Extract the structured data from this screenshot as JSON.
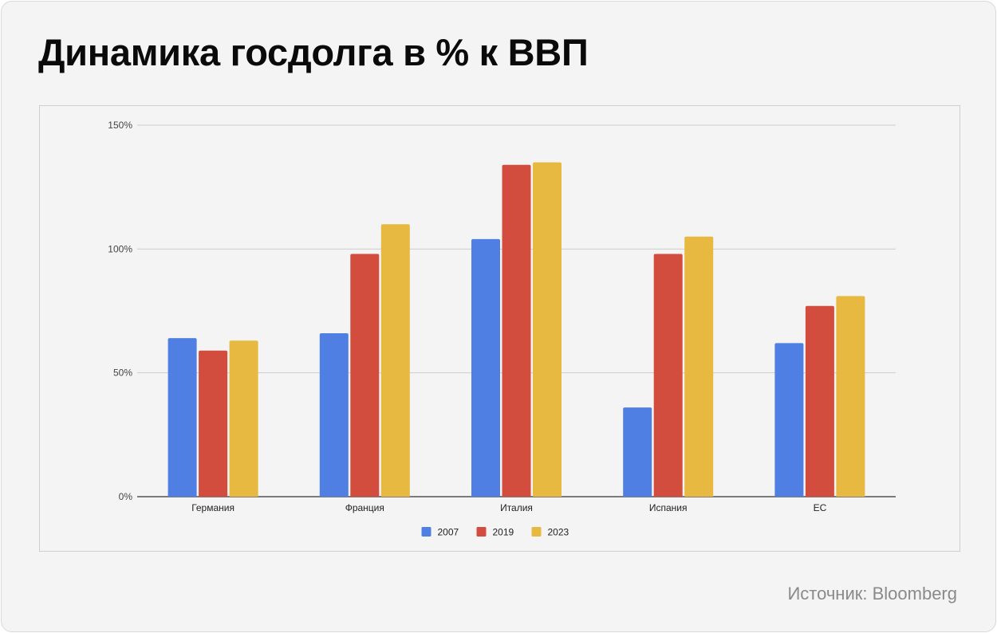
{
  "title": "Динамика госдолга в % к ВВП",
  "source": "Источник: Bloomberg",
  "chart_data": {
    "type": "bar",
    "categories": [
      "Германия",
      "Франция",
      "Италия",
      "Испания",
      "ЕС"
    ],
    "series": [
      {
        "name": "2007",
        "color": "#4f7fe3",
        "values": [
          64,
          66,
          104,
          36,
          62
        ]
      },
      {
        "name": "2019",
        "color": "#d34d3e",
        "values": [
          59,
          98,
          134,
          98,
          77
        ]
      },
      {
        "name": "2023",
        "color": "#e8b941",
        "values": [
          63,
          110,
          135,
          105,
          81
        ]
      }
    ],
    "ylim": [
      0,
      150
    ],
    "yticks": [
      0,
      50,
      100,
      150
    ],
    "ytick_labels": [
      "0%",
      "50%",
      "100%",
      "150%"
    ],
    "grid": true,
    "legend_position": "bottom"
  }
}
